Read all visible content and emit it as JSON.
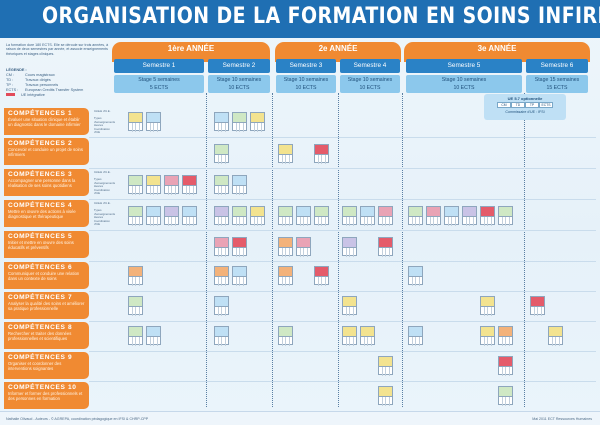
{
  "title": "ORGANISATION DE LA FORMATION EN SOINS INFIRMIERS",
  "intro": "La formation dure 180 ECTS. Elle se déroule sur trois années, à raison de deux semestres par année, et associe enseignements théoriques et stages cliniques.",
  "legend": {
    "title": "LÉGENDE :",
    "items": [
      {
        "abbr": "CM :",
        "text": "Cours magistraux"
      },
      {
        "abbr": "TD :",
        "text": "Travaux dirigés"
      },
      {
        "abbr": "TP :",
        "text": "Travaux personnels"
      },
      {
        "abbr": "ECTS :",
        "text": "European Credits Transfer System"
      }
    ],
    "integration": "UE intégrative"
  },
  "years": [
    "1ère ANNÉE",
    "2e ANNÉE",
    "3e ANNÉE"
  ],
  "semesters": [
    "Semestre 1",
    "Semestre 2",
    "Semestre 3",
    "Semestre 4",
    "Semestre 5",
    "Semestre 6"
  ],
  "stages": [
    {
      "duration": "Stage 5 semaines",
      "ects": "5 ECTS"
    },
    {
      "duration": "Stage 10 semaines",
      "ects": "10 ECTS"
    },
    {
      "duration": "Stage 10 semaines",
      "ects": "10 ECTS"
    },
    {
      "duration": "Stage 10 semaines",
      "ects": "10 ECTS"
    },
    {
      "duration": "Stage 10 semaines",
      "ects": "10 ECTS"
    },
    {
      "duration": "Stage 15 semaines",
      "ects": "15 ECTS"
    }
  ],
  "transversal": {
    "title": "UE 5.7 optionnelle",
    "cols": [
      "CM",
      "TD",
      "TP",
      "ECTS"
    ],
    "footer": "Commissaire d'UE : IFSI"
  },
  "row_labels": [
    "Intitulé d'U.E.",
    "Types d'enseignements",
    "Heures",
    "Coordination d'UE"
  ],
  "competences": [
    {
      "title": "COMPÉTENCES 1",
      "desc": "Évaluer une situation clinique et établir un diagnostic dans le domaine infirmier"
    },
    {
      "title": "COMPÉTENCES 2",
      "desc": "Concevoir et conduire un projet de soins infirmiers"
    },
    {
      "title": "COMPÉTENCES 3",
      "desc": "Accompagner une personne dans la réalisation de ses soins quotidiens"
    },
    {
      "title": "COMPÉTENCES 4",
      "desc": "Mettre en œuvre des actions à visée diagnostique et thérapeutique"
    },
    {
      "title": "COMPÉTENCES 5",
      "desc": "Initier et mettre en œuvre des soins éducatifs et préventifs"
    },
    {
      "title": "COMPÉTENCES 6",
      "desc": "Communiquer et conduire une relation dans un contexte de soins"
    },
    {
      "title": "COMPÉTENCES 7",
      "desc": "Analyser la qualité des soins et améliorer sa pratique professionnelle"
    },
    {
      "title": "COMPÉTENCES 8",
      "desc": "Rechercher et traiter des données professionnelles et scientifiques"
    },
    {
      "title": "COMPÉTENCES 9",
      "desc": "Organiser et coordonner des interventions soignantes"
    },
    {
      "title": "COMPÉTENCES 10",
      "desc": "Informer et former des professionnels et des personnes en formation"
    }
  ],
  "footer": {
    "left": "Nathalie Olivaud - Auteurs - © AGREPA, coordination pédagogique en IFSI & CHRP-CPP",
    "right": "Mai 2011 ECT Ressources Humaines"
  }
}
